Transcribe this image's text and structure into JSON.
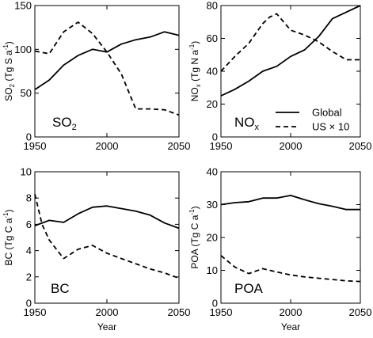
{
  "xlabel": "Year",
  "legend": [
    {
      "label": "Global",
      "style": "solid"
    },
    {
      "label": "US × 10",
      "style": "dashed"
    }
  ],
  "chart_data": [
    {
      "type": "line",
      "label": "SO2",
      "label_main": "SO",
      "label_sub": "2",
      "ylabel_parts": {
        "a": "SO",
        "b": "2",
        "c": " (Tg S a",
        "d": "-1",
        "e": ")"
      },
      "xlim": [
        1950,
        2050
      ],
      "ylim": [
        0,
        150
      ],
      "yticks": [
        0,
        50,
        100,
        150
      ],
      "xticks": [
        1950,
        2000,
        2050
      ],
      "series": [
        {
          "name": "Global",
          "x": [
            1950,
            1960,
            1970,
            1980,
            1990,
            2000,
            2010,
            2020,
            2030,
            2040,
            2050
          ],
          "y": [
            54,
            65,
            82,
            93,
            100,
            97,
            106,
            111,
            114,
            120,
            116
          ]
        },
        {
          "name": "US × 10",
          "x": [
            1950,
            1960,
            1970,
            1980,
            1990,
            2000,
            2010,
            2020,
            2030,
            2040,
            2050
          ],
          "y": [
            98,
            95,
            120,
            131,
            118,
            97,
            72,
            32,
            32,
            31,
            25
          ]
        }
      ]
    },
    {
      "type": "line",
      "label": "NOx",
      "label_main": "NO",
      "label_sub": "x",
      "ylabel_parts": {
        "a": "NO",
        "b": "x",
        "c": " (Tg N a",
        "d": "-1",
        "e": ")"
      },
      "xlim": [
        1950,
        2050
      ],
      "ylim": [
        0,
        80
      ],
      "yticks": [
        0,
        20,
        40,
        60,
        80
      ],
      "xticks": [
        1950,
        2000,
        2050
      ],
      "series": [
        {
          "name": "Global",
          "x": [
            1950,
            1960,
            1970,
            1980,
            1990,
            2000,
            2010,
            2020,
            2030,
            2040,
            2050
          ],
          "y": [
            25,
            29,
            34,
            40,
            43,
            49,
            53,
            61,
            72,
            76,
            80
          ]
        },
        {
          "name": "US × 10",
          "x": [
            1950,
            1960,
            1970,
            1980,
            1985,
            1990,
            2000,
            2010,
            2020,
            2030,
            2040,
            2050
          ],
          "y": [
            40,
            49,
            57,
            69,
            73,
            75,
            65,
            62,
            58,
            52,
            47,
            47
          ]
        }
      ]
    },
    {
      "type": "line",
      "label": "BC",
      "label_main": "BC",
      "label_sub": "",
      "ylabel_parts": {
        "a": "BC (Tg C a",
        "b": "",
        "c": "",
        "d": "-1",
        "e": ")"
      },
      "xlim": [
        1950,
        2050
      ],
      "ylim": [
        0,
        10
      ],
      "yticks": [
        0,
        2,
        4,
        6,
        8,
        10
      ],
      "xticks": [
        1950,
        2000,
        2050
      ],
      "series": [
        {
          "name": "Global",
          "x": [
            1950,
            1960,
            1970,
            1980,
            1990,
            2000,
            2010,
            2020,
            2030,
            2040,
            2050
          ],
          "y": [
            5.9,
            6.3,
            6.15,
            6.8,
            7.3,
            7.4,
            7.2,
            7.0,
            6.7,
            6.1,
            5.7
          ]
        },
        {
          "name": "US × 10",
          "x": [
            1950,
            1955,
            1960,
            1970,
            1980,
            1990,
            2000,
            2010,
            2020,
            2030,
            2040,
            2050
          ],
          "y": [
            8.3,
            6.0,
            4.8,
            3.4,
            4.1,
            4.4,
            3.8,
            3.4,
            3.0,
            2.6,
            2.3,
            1.9
          ]
        }
      ]
    },
    {
      "type": "line",
      "label": "POA",
      "label_main": "POA",
      "label_sub": "",
      "ylabel_parts": {
        "a": "POA (Tg C a",
        "b": "",
        "c": "",
        "d": "-1",
        "e": ")"
      },
      "xlim": [
        1950,
        2050
      ],
      "ylim": [
        0,
        40
      ],
      "yticks": [
        0,
        10,
        20,
        30,
        40
      ],
      "xticks": [
        1950,
        2000,
        2050
      ],
      "series": [
        {
          "name": "Global",
          "x": [
            1950,
            1960,
            1970,
            1980,
            1990,
            2000,
            2010,
            2020,
            2030,
            2040,
            2050
          ],
          "y": [
            30,
            30.6,
            30.9,
            32,
            32,
            32.8,
            31.5,
            30.3,
            29.5,
            28.5,
            28.5
          ]
        },
        {
          "name": "US × 10",
          "x": [
            1950,
            1960,
            1970,
            1980,
            1990,
            2000,
            2010,
            2020,
            2030,
            2040,
            2050
          ],
          "y": [
            14.5,
            11,
            9,
            10.5,
            9.5,
            8.6,
            8,
            7.6,
            7.2,
            6.8,
            6.6
          ]
        }
      ]
    }
  ]
}
